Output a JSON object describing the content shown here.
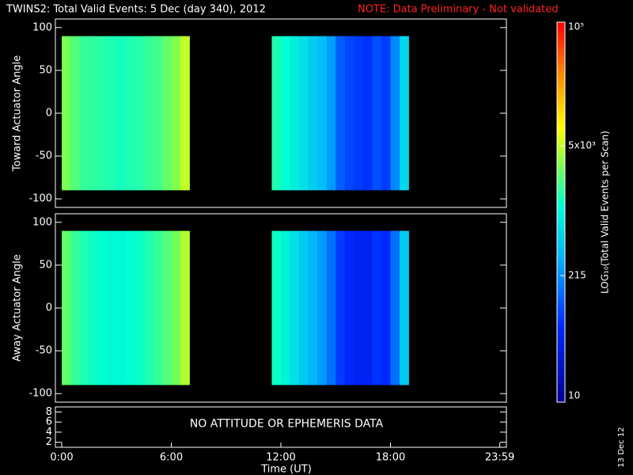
{
  "header": {
    "title": "TWINS2: Total Valid Events:  5 Dec (day 340), 2012",
    "note": "NOTE: Data Preliminary - Not validated",
    "note_color": "#ff2020",
    "date_stamp": "13 Dec 12"
  },
  "colorbar": {
    "label": "LOG₁₀(Total Valid Events per Scan)",
    "log": true,
    "clim": [
      10,
      100000
    ],
    "ticks": [
      10,
      215,
      {
        "value": 5000,
        "label": "5x10³"
      },
      {
        "value": 100000,
        "label": "10⁵"
      }
    ]
  },
  "chart_data": [
    {
      "type": "heatmap",
      "ylabel": "Toward Actuator Angle",
      "ylim": [
        -110,
        110
      ],
      "yticks": [
        -100,
        -50,
        0,
        50,
        100
      ],
      "y_extent": [
        -90,
        90
      ],
      "xlim": [
        0,
        24
      ],
      "x_edges": [
        0,
        0.5,
        1,
        1.5,
        2,
        2.5,
        3,
        3.5,
        4,
        4.5,
        5,
        5.5,
        6,
        6.5,
        7,
        7.5,
        8,
        8.5,
        9,
        9.5,
        10,
        10.5,
        11,
        11.5,
        12,
        12.5,
        13,
        13.5,
        14,
        14.5,
        15,
        15.5,
        16,
        16.5,
        17,
        17.5,
        18,
        18.5,
        19
      ],
      "values": [
        3000,
        2200,
        1800,
        1700,
        1600,
        1500,
        1400,
        1500,
        1600,
        1800,
        2000,
        2500,
        3200,
        5000,
        null,
        null,
        null,
        null,
        null,
        null,
        null,
        null,
        null,
        1500,
        1200,
        900,
        700,
        500,
        400,
        250,
        120,
        90,
        80,
        70,
        100,
        80,
        200,
        600
      ]
    },
    {
      "type": "heatmap",
      "ylabel": "Away Actuator Angle",
      "ylim": [
        -110,
        110
      ],
      "yticks": [
        -100,
        -50,
        0,
        50,
        100
      ],
      "y_extent": [
        -90,
        90
      ],
      "xlim": [
        0,
        24
      ],
      "x_edges": [
        0,
        0.5,
        1,
        1.5,
        2,
        2.5,
        3,
        3.5,
        4,
        4.5,
        5,
        5.5,
        6,
        6.5,
        7,
        7.5,
        8,
        8.5,
        9,
        9.5,
        10,
        10.5,
        11,
        11.5,
        12,
        12.5,
        13,
        13.5,
        14,
        14.5,
        15,
        15.5,
        16,
        16.5,
        17,
        17.5,
        18,
        18.5,
        19
      ],
      "values": [
        2500,
        1800,
        1500,
        1300,
        1200,
        1100,
        1100,
        1200,
        1300,
        1500,
        1800,
        2200,
        2800,
        4500,
        null,
        null,
        null,
        null,
        null,
        null,
        null,
        null,
        null,
        1300,
        1000,
        700,
        500,
        350,
        250,
        150,
        80,
        60,
        50,
        50,
        70,
        60,
        150,
        500
      ]
    },
    {
      "type": "empty",
      "annotation": "NO ATTITUDE OR EPHEMERIS DATA",
      "ylim": [
        1,
        9
      ],
      "yticks": [
        2,
        4,
        6,
        8
      ],
      "xlim": [
        0,
        24
      ],
      "xticks": [
        {
          "value": 0,
          "label": "0:00"
        },
        {
          "value": 6,
          "label": "6:00"
        },
        {
          "value": 12,
          "label": "12:00"
        },
        {
          "value": 18,
          "label": "18:00"
        },
        {
          "value": 23.983,
          "label": "23:59"
        }
      ],
      "xlabel": "Time (UT)"
    }
  ]
}
